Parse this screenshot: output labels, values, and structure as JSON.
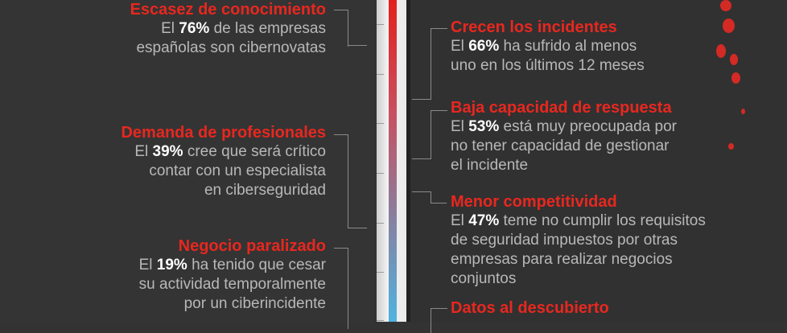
{
  "left": [
    {
      "title": "Escasez de conocimiento",
      "pre": "El ",
      "pct": "76%",
      "post": " de las empresas",
      "lines": [
        "españolas son cibernovatas"
      ]
    },
    {
      "title": "Demanda de profesionales",
      "pre": "El ",
      "pct": "39%",
      "post": " cree que será crítico",
      "lines": [
        "contar con un especialista",
        "en ciberseguridad"
      ]
    },
    {
      "title": "Negocio paralizado",
      "pre": "El ",
      "pct": "19%",
      "post": " ha tenido que cesar",
      "lines": [
        "su actividad temporalmente",
        "por un ciberincidente"
      ]
    }
  ],
  "right": [
    {
      "title": "Crecen los incidentes",
      "pre": "El ",
      "pct": "66%",
      "post": " ha sufrido al menos",
      "lines": [
        "uno en los últimos 12 meses"
      ]
    },
    {
      "title": "Baja capacidad de respuesta",
      "pre": "El ",
      "pct": "53%",
      "post": " está muy preocupada por",
      "lines": [
        "no tener capacidad de gestionar",
        "el incidente"
      ]
    },
    {
      "title": "Menor competitividad",
      "pre": "El ",
      "pct": "47%",
      "post": " teme no cumplir los requisitos",
      "lines": [
        "de seguridad impuestos por otras",
        "empresas para realizar negocios",
        "conjuntos"
      ]
    },
    {
      "title": "Datos al descubierto"
    }
  ],
  "colors": {
    "accent": "#e8271f",
    "thermometer_top": "#e3201c",
    "thermometer_bottom": "#4fb3e0"
  }
}
